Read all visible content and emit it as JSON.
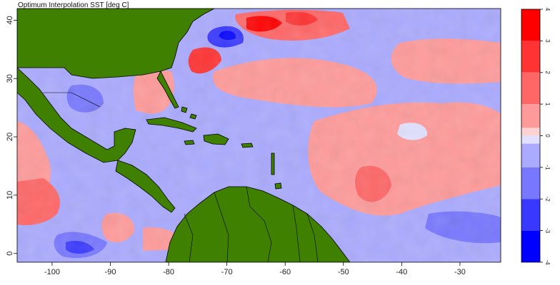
{
  "map": {
    "title": "Optimum Interpolation SST [deg C]",
    "x_axis": {
      "range": [
        -106,
        -23
      ],
      "ticks": [
        -100,
        -90,
        -80,
        -70,
        -60,
        -50,
        -40,
        -30
      ],
      "labels": [
        "-100",
        "-90",
        "-80",
        "-70",
        "-60",
        "-50",
        "-40",
        "-30"
      ]
    },
    "y_axis": {
      "range": [
        -1.5,
        42
      ],
      "ticks": [
        0,
        10,
        20,
        30,
        40
      ],
      "labels": [
        "0",
        "10",
        "20",
        "30",
        "40"
      ]
    },
    "colors": {
      "land": "#3f8000",
      "background": "#ffffff"
    },
    "colorbar": {
      "ticks": [
        4,
        3,
        2,
        1,
        0,
        -1,
        -2,
        -3,
        -4
      ],
      "labels": [
        "4",
        "3",
        "2",
        "1",
        "0",
        "-1",
        "-2",
        "-3",
        "-4"
      ],
      "bands": [
        {
          "from": 4,
          "to": 3,
          "color": "#ff0000"
        },
        {
          "from": 3,
          "to": 2,
          "color": "#ff3333"
        },
        {
          "from": 2,
          "to": 1,
          "color": "#ff6666"
        },
        {
          "from": 1,
          "to": 0.25,
          "color": "#ff9a9a"
        },
        {
          "from": 0.25,
          "to": 0,
          "color": "#ffd2d2"
        },
        {
          "from": 0,
          "to": -0.25,
          "color": "#e1e1ff"
        },
        {
          "from": -0.25,
          "to": -1,
          "color": "#aaaaff"
        },
        {
          "from": -1,
          "to": -2,
          "color": "#7777ff"
        },
        {
          "from": -2,
          "to": -3,
          "color": "#3838ff"
        },
        {
          "from": -3,
          "to": -4,
          "color": "#0000ff"
        }
      ]
    }
  }
}
